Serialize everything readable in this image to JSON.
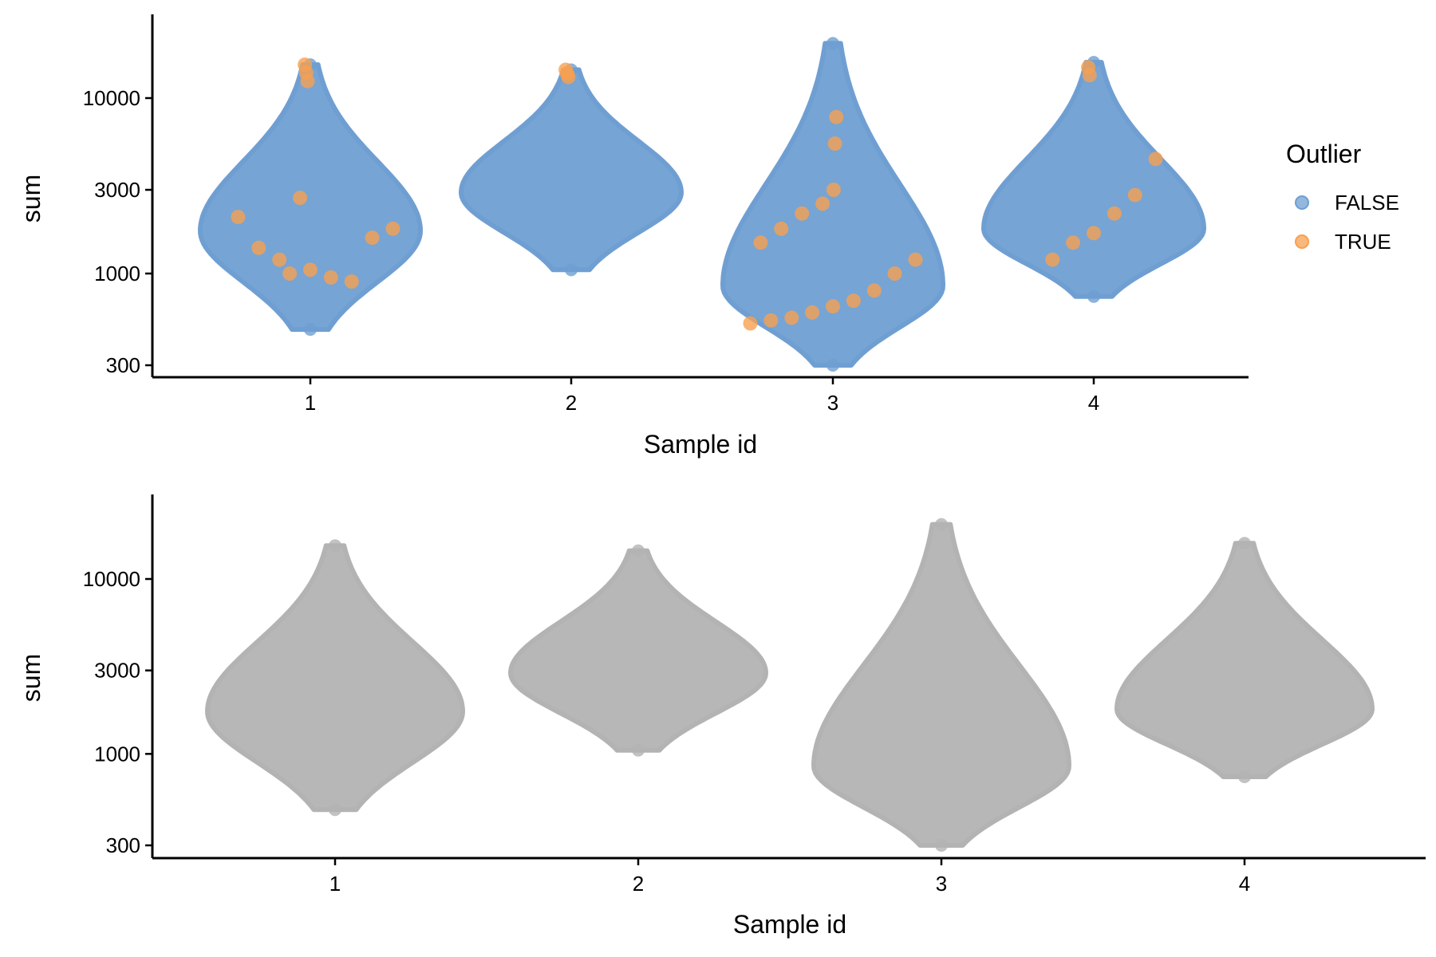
{
  "chart_data": [
    {
      "type": "violin",
      "title": "",
      "xlabel": "Sample id",
      "ylabel": "sum",
      "y_scale": "log10",
      "ylim": [
        270,
        22000
      ],
      "y_ticks": [
        300,
        1000,
        3000,
        10000
      ],
      "categories": [
        "1",
        "2",
        "3",
        "4"
      ],
      "grid": false,
      "colors": {
        "FALSE": "#6f9fd2",
        "TRUE": "#f7a050"
      },
      "legend": {
        "title": "Outlier",
        "position": "right",
        "entries": [
          "FALSE",
          "TRUE"
        ]
      },
      "violins": [
        {
          "category": "1",
          "min": 480,
          "max": 15500,
          "median": 1750
        },
        {
          "category": "2",
          "min": 1050,
          "max": 14500,
          "median": 2900
        },
        {
          "category": "3",
          "min": 300,
          "max": 20500,
          "median": 850
        },
        {
          "category": "4",
          "min": 740,
          "max": 16000,
          "median": 1800
        }
      ],
      "outliers_true": [
        {
          "category": "1",
          "values": [
            15500,
            14000,
            12500,
            1000,
            1050,
            950,
            900,
            1600,
            1800,
            2100,
            1400,
            1200,
            2700
          ]
        },
        {
          "category": "2",
          "values": [
            14500,
            13800,
            13200
          ]
        },
        {
          "category": "3",
          "values": [
            520,
            540,
            560,
            600,
            650,
            700,
            800,
            1000,
            1200,
            1500,
            1800,
            2200,
            2500,
            3000,
            5500,
            7800
          ]
        },
        {
          "category": "4",
          "values": [
            15000,
            13500,
            1200,
            1500,
            1700,
            2200,
            2800,
            4500
          ]
        }
      ]
    },
    {
      "type": "violin",
      "title": "",
      "xlabel": "Sample id",
      "ylabel": "sum",
      "y_scale": "log10",
      "ylim": [
        270,
        22000
      ],
      "y_ticks": [
        300,
        1000,
        3000,
        10000
      ],
      "categories": [
        "1",
        "2",
        "3",
        "4"
      ],
      "grid": false,
      "colors": {
        "fill": "#b3b3b3"
      },
      "violins": [
        {
          "category": "1",
          "min": 480,
          "max": 15500,
          "median": 1750
        },
        {
          "category": "2",
          "min": 1050,
          "max": 14500,
          "median": 2900
        },
        {
          "category": "3",
          "min": 300,
          "max": 20500,
          "median": 850
        },
        {
          "category": "4",
          "min": 740,
          "max": 16000,
          "median": 1800
        }
      ]
    }
  ]
}
